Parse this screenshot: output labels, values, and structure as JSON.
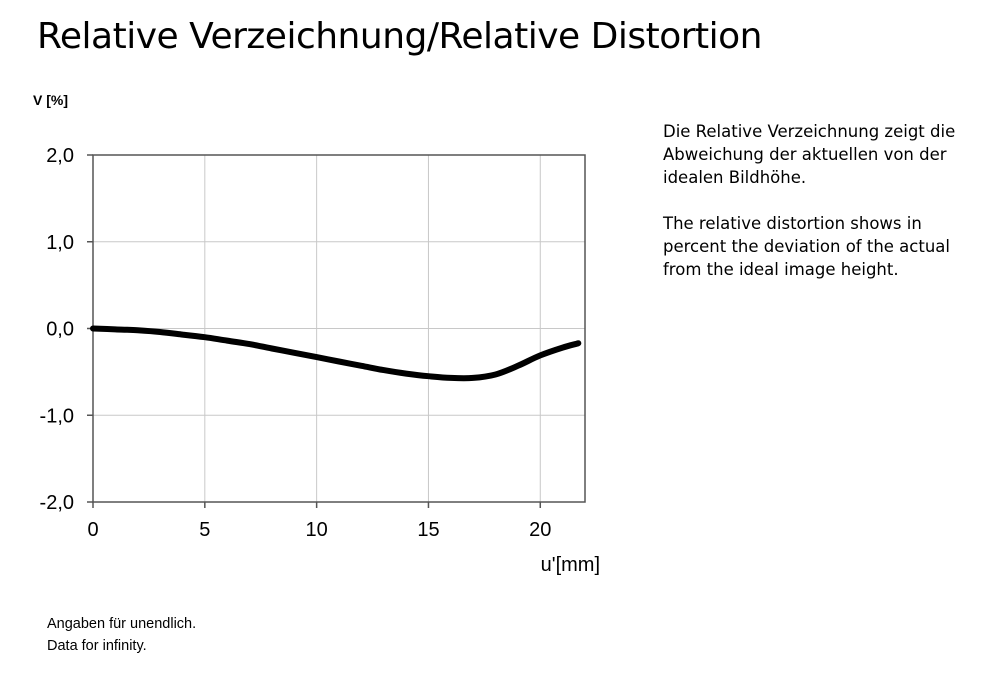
{
  "header": {
    "title": "Relative Verzeichnung/Relative Distortion"
  },
  "description": {
    "de": "Die Relative Verzeichnung zeigt die Abweichung der aktuellen von der idealen Bildhöhe.",
    "en": "The relative distortion shows in percent the deviation of the actual from the ideal image height."
  },
  "footnote": {
    "line1": "Angaben für unendlich.",
    "line2": "Data for infinity."
  },
  "chart_data": {
    "type": "line",
    "title": "",
    "xlabel": "u'[mm]",
    "ylabel": "V [%]",
    "xlim": [
      0,
      22
    ],
    "ylim": [
      -2,
      2
    ],
    "x_ticks": [
      0,
      5,
      10,
      15,
      20
    ],
    "x_tick_labels": [
      "0",
      "5",
      "10",
      "15",
      "20"
    ],
    "y_ticks": [
      2,
      1,
      0,
      -1,
      -2
    ],
    "y_tick_labels": [
      "2,0",
      "1,0",
      "0,0",
      "-1,0",
      "-2,0"
    ],
    "grid": true,
    "line_color": "#000000",
    "grid_color": "#c8c8c8",
    "series": [
      {
        "x": [
          0,
          1,
          2,
          3,
          4,
          5,
          6,
          7,
          8,
          9,
          10,
          11,
          12,
          13,
          14,
          15,
          16,
          17,
          18,
          19,
          20,
          21,
          21.7
        ],
        "y": [
          0.0,
          -0.01,
          -0.02,
          -0.04,
          -0.07,
          -0.1,
          -0.14,
          -0.18,
          -0.23,
          -0.28,
          -0.33,
          -0.38,
          -0.43,
          -0.48,
          -0.52,
          -0.55,
          -0.57,
          -0.57,
          -0.53,
          -0.43,
          -0.31,
          -0.22,
          -0.17
        ]
      }
    ]
  }
}
